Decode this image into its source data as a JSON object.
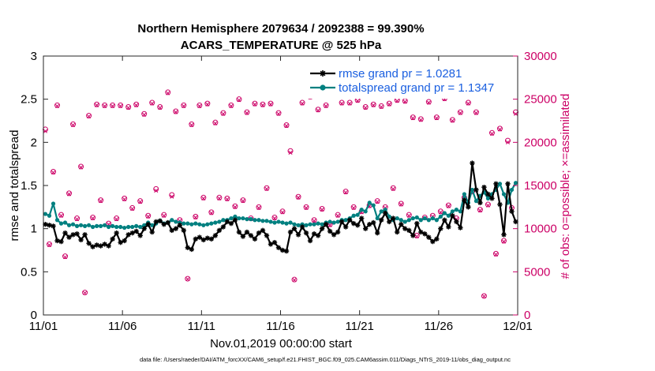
{
  "chart_data": {
    "type": "line",
    "title": "Northern Hemisphere 2079634 / 2092388 = 99.390%",
    "subtitle": "ACARS_TEMPERATURE @ 525 hPa",
    "xlabel": "Nov.01,2019 00:00:00 start",
    "ylabel": "rmse and totalspread",
    "ylabel_right": "# of obs: o=possible; ×=assimilated",
    "footnote": "data file: /Users/raeder/DAI/ATM_forcXX/CAM6_setup/f.e21.FHIST_BGC.f09_025.CAM6assim.011/Diags_NTrS_2019-11/obs_diag_output.nc",
    "x_ticks": [
      "11/01",
      "11/06",
      "11/11",
      "11/16",
      "11/21",
      "11/26",
      "12/01"
    ],
    "xlim": [
      0,
      30
    ],
    "ylim": [
      0,
      3
    ],
    "y_ticks": [
      "0",
      "0.5",
      "1",
      "1.5",
      "2",
      "2.5",
      "3"
    ],
    "ylim_right": [
      0,
      30000
    ],
    "y_ticks_right": [
      "0",
      "5000",
      "10000",
      "15000",
      "20000",
      "25000",
      "30000"
    ],
    "legend": [
      {
        "name": "rmse grand pr = 1.0281",
        "color": "#000000",
        "marker": "star"
      },
      {
        "name": "totalspread grand pr = 1.1347",
        "color": "#008080",
        "marker": "circle"
      }
    ],
    "series": [
      {
        "name": "rmse",
        "color": "#000000",
        "x": [
          0.125,
          0.375,
          0.625,
          0.875,
          1.125,
          1.375,
          1.625,
          1.875,
          2.125,
          2.375,
          2.625,
          2.875,
          3.125,
          3.375,
          3.625,
          3.875,
          4.125,
          4.375,
          4.625,
          4.875,
          5.125,
          5.375,
          5.625,
          5.875,
          6.125,
          6.375,
          6.625,
          6.875,
          7.125,
          7.375,
          7.625,
          7.875,
          8.125,
          8.375,
          8.625,
          8.875,
          9.125,
          9.375,
          9.625,
          9.875,
          10.125,
          10.375,
          10.625,
          10.875,
          11.125,
          11.375,
          11.625,
          11.875,
          12.125,
          12.375,
          12.625,
          12.875,
          13.125,
          13.375,
          13.625,
          13.875,
          14.125,
          14.375,
          14.625,
          14.875,
          15.125,
          15.375,
          15.625,
          15.875,
          16.125,
          16.375,
          16.625,
          16.875,
          17.125,
          17.375,
          17.625,
          17.875,
          18.125,
          18.375,
          18.625,
          18.875,
          19.125,
          19.375,
          19.625,
          19.875,
          20.125,
          20.375,
          20.625,
          20.875,
          21.125,
          21.375,
          21.625,
          21.875,
          22.125,
          22.375,
          22.625,
          22.875,
          23.125,
          23.375,
          23.625,
          23.875,
          24.125,
          24.375,
          24.625,
          24.875,
          25.125,
          25.375,
          25.625,
          25.875,
          26.125,
          26.375,
          26.625,
          26.875,
          27.125,
          27.375,
          27.625,
          27.875,
          28.125,
          28.375,
          28.625,
          28.875,
          29.125,
          29.375,
          29.625,
          29.875
        ],
        "values": [
          1.05,
          1.04,
          1.03,
          0.86,
          0.85,
          0.95,
          0.9,
          0.93,
          0.94,
          0.87,
          0.93,
          0.83,
          0.79,
          0.81,
          0.8,
          0.82,
          0.8,
          0.88,
          0.95,
          0.84,
          0.86,
          0.93,
          0.95,
          0.97,
          0.92,
          1.0,
          1.05,
          0.96,
          1.08,
          1.09,
          1.05,
          1.07,
          0.98,
          1.0,
          1.04,
          0.98,
          0.78,
          0.76,
          0.88,
          0.9,
          0.87,
          0.89,
          0.88,
          0.92,
          0.98,
          1.02,
          1.08,
          1.06,
          1.1,
          0.96,
          0.91,
          0.96,
          0.92,
          0.88,
          0.95,
          0.98,
          0.92,
          0.82,
          0.84,
          0.78,
          0.75,
          0.74,
          0.96,
          1.0,
          0.93,
          1.02,
          0.95,
          0.86,
          0.94,
          0.92,
          1.0,
          1.05,
          0.97,
          0.93,
          0.96,
          1.08,
          1.02,
          1.1,
          1.06,
          1.04,
          1.12,
          1.0,
          1.05,
          1.07,
          0.95,
          1.1,
          1.18,
          1.08,
          1.12,
          0.96,
          1.05,
          1.0,
          0.98,
          0.92,
          1.06,
          0.96,
          0.94,
          0.9,
          0.85,
          0.88,
          1.0,
          1.1,
          1.02,
          1.15,
          1.08,
          1.01,
          1.33,
          1.25,
          1.76,
          1.45,
          1.3,
          1.48,
          1.4,
          1.35,
          1.52,
          1.28,
          0.93,
          1.52,
          1.2,
          1.08
        ]
      },
      {
        "name": "totalspread",
        "color": "#008080",
        "x": [
          0.125,
          0.375,
          0.625,
          0.875,
          1.125,
          1.375,
          1.625,
          1.875,
          2.125,
          2.375,
          2.625,
          2.875,
          3.125,
          3.375,
          3.625,
          3.875,
          4.125,
          4.375,
          4.625,
          4.875,
          5.125,
          5.375,
          5.625,
          5.875,
          6.125,
          6.375,
          6.625,
          6.875,
          7.125,
          7.375,
          7.625,
          7.875,
          8.125,
          8.375,
          8.625,
          8.875,
          9.125,
          9.375,
          9.625,
          9.875,
          10.125,
          10.375,
          10.625,
          10.875,
          11.125,
          11.375,
          11.625,
          11.875,
          12.125,
          12.375,
          12.625,
          12.875,
          13.125,
          13.375,
          13.625,
          13.875,
          14.125,
          14.375,
          14.625,
          14.875,
          15.125,
          15.375,
          15.625,
          15.875,
          16.125,
          16.375,
          16.625,
          16.875,
          17.125,
          17.375,
          17.625,
          17.875,
          18.125,
          18.375,
          18.625,
          18.875,
          19.125,
          19.375,
          19.625,
          19.875,
          20.125,
          20.375,
          20.625,
          20.875,
          21.125,
          21.375,
          21.625,
          21.875,
          22.125,
          22.375,
          22.625,
          22.875,
          23.125,
          23.375,
          23.625,
          23.875,
          24.125,
          24.375,
          24.625,
          24.875,
          25.125,
          25.375,
          25.625,
          25.875,
          26.125,
          26.375,
          26.625,
          26.875,
          27.125,
          27.375,
          27.625,
          27.875,
          28.125,
          28.375,
          28.625,
          28.875,
          29.125,
          29.375,
          29.625,
          29.875
        ],
        "values": [
          1.17,
          1.15,
          1.29,
          1.1,
          1.06,
          1.07,
          1.04,
          1.05,
          1.03,
          1.04,
          1.03,
          1.04,
          1.02,
          1.03,
          1.03,
          1.04,
          1.02,
          1.03,
          1.02,
          1.02,
          1.01,
          1.02,
          1.02,
          1.03,
          1.02,
          1.04,
          1.07,
          1.04,
          1.06,
          1.09,
          1.06,
          1.07,
          1.1,
          1.08,
          1.07,
          1.06,
          1.06,
          1.05,
          1.06,
          1.05,
          1.04,
          1.05,
          1.06,
          1.07,
          1.08,
          1.1,
          1.1,
          1.12,
          1.14,
          1.12,
          1.12,
          1.11,
          1.11,
          1.1,
          1.1,
          1.09,
          1.09,
          1.08,
          1.07,
          1.08,
          1.07,
          1.06,
          1.07,
          1.05,
          1.04,
          1.05,
          1.04,
          1.05,
          1.05,
          1.06,
          1.05,
          1.07,
          1.08,
          1.07,
          1.08,
          1.1,
          1.1,
          1.12,
          1.15,
          1.16,
          1.22,
          1.2,
          1.3,
          1.27,
          1.12,
          1.2,
          1.22,
          1.14,
          1.1,
          1.12,
          1.1,
          1.08,
          1.1,
          1.12,
          1.13,
          1.1,
          1.12,
          1.1,
          1.12,
          1.1,
          1.14,
          1.18,
          1.15,
          1.2,
          1.22,
          1.2,
          1.4,
          1.3,
          1.45,
          1.32,
          1.38,
          1.42,
          1.35,
          1.4,
          1.45,
          1.52,
          1.4,
          1.3,
          1.45,
          1.53
        ]
      },
      {
        "name": "obs possible",
        "color": "#cc0066",
        "axis": "right",
        "x": [
          0.125,
          0.375,
          0.625,
          0.875,
          1.125,
          1.375,
          1.625,
          1.875,
          2.125,
          2.375,
          2.625,
          2.875,
          3.125,
          3.375,
          3.625,
          3.875,
          4.125,
          4.375,
          4.625,
          4.875,
          5.125,
          5.375,
          5.625,
          5.875,
          6.125,
          6.375,
          6.625,
          6.875,
          7.125,
          7.375,
          7.625,
          7.875,
          8.125,
          8.375,
          8.625,
          8.875,
          9.125,
          9.375,
          9.625,
          9.875,
          10.125,
          10.375,
          10.625,
          10.875,
          11.125,
          11.375,
          11.625,
          11.875,
          12.125,
          12.375,
          12.625,
          12.875,
          13.125,
          13.375,
          13.625,
          13.875,
          14.125,
          14.375,
          14.625,
          14.875,
          15.125,
          15.375,
          15.625,
          15.875,
          16.125,
          16.375,
          16.625,
          16.875,
          17.125,
          17.375,
          17.625,
          17.875,
          18.125,
          18.375,
          18.625,
          18.875,
          19.125,
          19.375,
          19.625,
          19.875,
          20.125,
          20.375,
          20.625,
          20.875,
          21.125,
          21.375,
          21.625,
          21.875,
          22.125,
          22.375,
          22.625,
          22.875,
          23.125,
          23.375,
          23.625,
          23.875,
          24.125,
          24.375,
          24.625,
          24.875,
          25.125,
          25.375,
          25.625,
          25.875,
          26.125,
          26.375,
          26.625,
          26.875,
          27.125,
          27.375,
          27.625,
          27.875,
          28.125,
          28.375,
          28.625,
          28.875,
          29.125,
          29.375,
          29.625,
          29.875
        ],
        "values": [
          21500,
          8200,
          16600,
          24300,
          11600,
          6800,
          14100,
          22100,
          11200,
          17200,
          2600,
          23100,
          11300,
          24400,
          13300,
          24300,
          10600,
          24300,
          11200,
          24300,
          13500,
          24100,
          12400,
          24400,
          13200,
          23300,
          11500,
          24600,
          14600,
          24100,
          11600,
          25800,
          13900,
          23600,
          11000,
          24300,
          4200,
          22100,
          11400,
          24300,
          13600,
          24500,
          11900,
          22300,
          13600,
          23400,
          13500,
          24300,
          12600,
          25000,
          13300,
          23500,
          11200,
          24500,
          12500,
          24400,
          14700,
          24500,
          11300,
          23400,
          12000,
          22000,
          19000,
          4100,
          13700,
          24600,
          12500,
          25300,
          11000,
          23800,
          12300,
          24300,
          10500,
          25500,
          11600,
          24600,
          14300,
          24600,
          12500,
          24900,
          12000,
          24100,
          12700,
          24400,
          13200,
          24200,
          12500,
          24500,
          14700,
          24900,
          12900,
          24800,
          11600,
          22900,
          9200,
          22700,
          11300,
          24700,
          11500,
          22900,
          12000,
          25100,
          12700,
          22600,
          11200,
          23500,
          13600,
          24600,
          14300,
          23500,
          12200,
          2200,
          12800,
          21100,
          7100,
          21600,
          8600,
          20200,
          12400,
          23500
        ]
      },
      {
        "name": "obs assimilated",
        "color": "#cc0066",
        "axis": "right",
        "x": [
          0.125,
          0.375,
          0.625,
          0.875,
          1.125,
          1.375,
          1.625,
          1.875,
          2.125,
          2.375,
          2.625,
          2.875,
          3.125,
          3.375,
          3.625,
          3.875,
          4.125,
          4.375,
          4.625,
          4.875,
          5.125,
          5.375,
          5.625,
          5.875,
          6.125,
          6.375,
          6.625,
          6.875,
          7.125,
          7.375,
          7.625,
          7.875,
          8.125,
          8.375,
          8.625,
          8.875,
          9.125,
          9.375,
          9.625,
          9.875,
          10.125,
          10.375,
          10.625,
          10.875,
          11.125,
          11.375,
          11.625,
          11.875,
          12.125,
          12.375,
          12.625,
          12.875,
          13.125,
          13.375,
          13.625,
          13.875,
          14.125,
          14.375,
          14.625,
          14.875,
          15.125,
          15.375,
          15.625,
          15.875,
          16.125,
          16.375,
          16.625,
          16.875,
          17.125,
          17.375,
          17.625,
          17.875,
          18.125,
          18.375,
          18.625,
          18.875,
          19.125,
          19.375,
          19.625,
          19.875,
          20.125,
          20.375,
          20.625,
          20.875,
          21.125,
          21.375,
          21.625,
          21.875,
          22.125,
          22.375,
          22.625,
          22.875,
          23.125,
          23.375,
          23.625,
          23.875,
          24.125,
          24.375,
          24.625,
          24.875,
          25.125,
          25.375,
          25.625,
          25.875,
          26.125,
          26.375,
          26.625,
          26.875,
          27.125,
          27.375,
          27.625,
          27.875,
          28.125,
          28.375,
          28.625,
          28.875,
          29.125,
          29.375,
          29.625,
          29.875
        ],
        "values": [
          21300,
          8100,
          16500,
          24200,
          11500,
          6700,
          14000,
          22000,
          11100,
          17100,
          2550,
          23000,
          11200,
          24300,
          13200,
          24200,
          10500,
          24200,
          11100,
          24200,
          13400,
          24000,
          12300,
          24300,
          13100,
          23200,
          11400,
          24500,
          14400,
          24000,
          11500,
          25700,
          13700,
          23500,
          10900,
          24200,
          4150,
          22000,
          11300,
          24200,
          13500,
          24400,
          11800,
          22200,
          13500,
          23300,
          13400,
          24200,
          12500,
          24900,
          13200,
          23400,
          11100,
          24400,
          12400,
          24300,
          14600,
          24400,
          11200,
          23300,
          11900,
          21900,
          18800,
          4050,
          13600,
          24500,
          12400,
          25200,
          10900,
          23700,
          12200,
          24200,
          10400,
          25400,
          11500,
          24500,
          14200,
          24500,
          12400,
          24800,
          11900,
          24000,
          12600,
          24300,
          13100,
          24100,
          12400,
          24400,
          14600,
          24800,
          12800,
          24700,
          11500,
          22800,
          9100,
          22600,
          11200,
          24600,
          11400,
          22800,
          11900,
          25000,
          12600,
          22500,
          11100,
          23400,
          13500,
          24500,
          14200,
          23400,
          12100,
          2150,
          12700,
          21000,
          7000,
          21500,
          8500,
          20000,
          12300,
          23300
        ]
      }
    ]
  }
}
